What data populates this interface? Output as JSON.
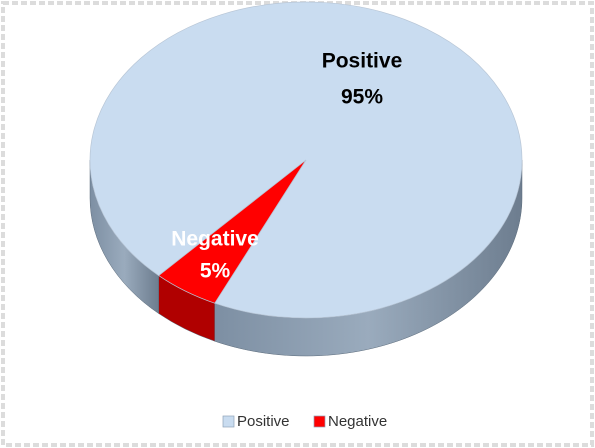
{
  "chart_data": {
    "type": "pie",
    "categories": [
      "Positive",
      "Negative"
    ],
    "values": [
      95,
      5
    ],
    "value_labels": [
      "95%",
      "5%"
    ],
    "colors": [
      "#c9dcf0",
      "#ff0000"
    ],
    "legend": "bottom"
  }
}
